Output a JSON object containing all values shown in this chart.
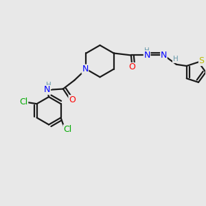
{
  "bg_color": "#e8e8e8",
  "atom_colors": {
    "C": "#1a1a1a",
    "N": "#0000ff",
    "O": "#ff0000",
    "S": "#bbbb00",
    "Cl": "#00aa00",
    "H": "#6699aa"
  },
  "bond_color": "#1a1a1a",
  "bond_width": 1.6,
  "font_size_atom": 9,
  "font_size_h": 7.5
}
